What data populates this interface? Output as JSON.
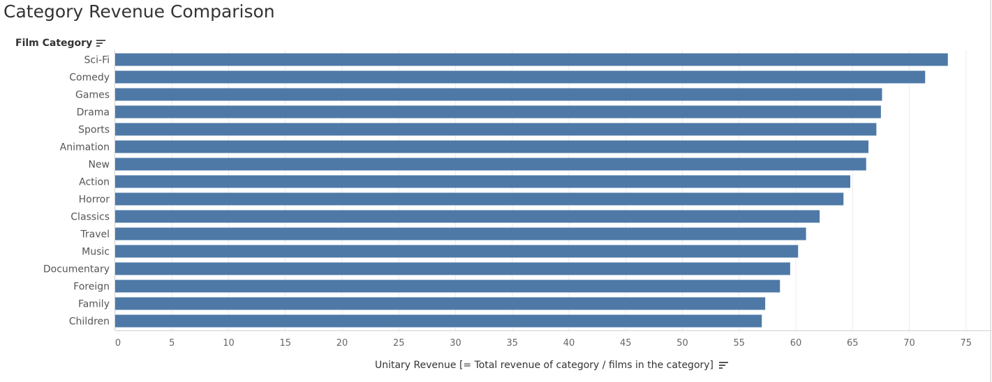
{
  "title": "Category Revenue Comparison",
  "y_axis_title": "Film Category",
  "x_axis_title": "Unitary Revenue [= Total revenue of category / films in the category]",
  "colors": {
    "bar": "#4e79a7",
    "grid": "#ececec",
    "axis": "#d0d0d0"
  },
  "icons": {
    "sort": "sort-descending-icon"
  },
  "chart_data": {
    "type": "bar",
    "orientation": "horizontal",
    "categories": [
      "Sci-Fi",
      "Comedy",
      "Games",
      "Drama",
      "Sports",
      "Animation",
      "New",
      "Action",
      "Horror",
      "Classics",
      "Travel",
      "Music",
      "Documentary",
      "Foreign",
      "Family",
      "Children"
    ],
    "values": [
      73.4,
      71.4,
      67.6,
      67.5,
      67.1,
      66.4,
      66.2,
      64.8,
      64.2,
      62.1,
      60.9,
      60.2,
      59.5,
      58.6,
      57.3,
      57.0
    ],
    "xlabel": "Unitary Revenue [= Total revenue of category / films in the category]",
    "ylabel": "Film Category",
    "xlim": [
      0,
      77
    ],
    "xticks": [
      0,
      5,
      10,
      15,
      20,
      25,
      30,
      35,
      40,
      45,
      50,
      55,
      60,
      65,
      70,
      75
    ],
    "grid": "vertical"
  }
}
